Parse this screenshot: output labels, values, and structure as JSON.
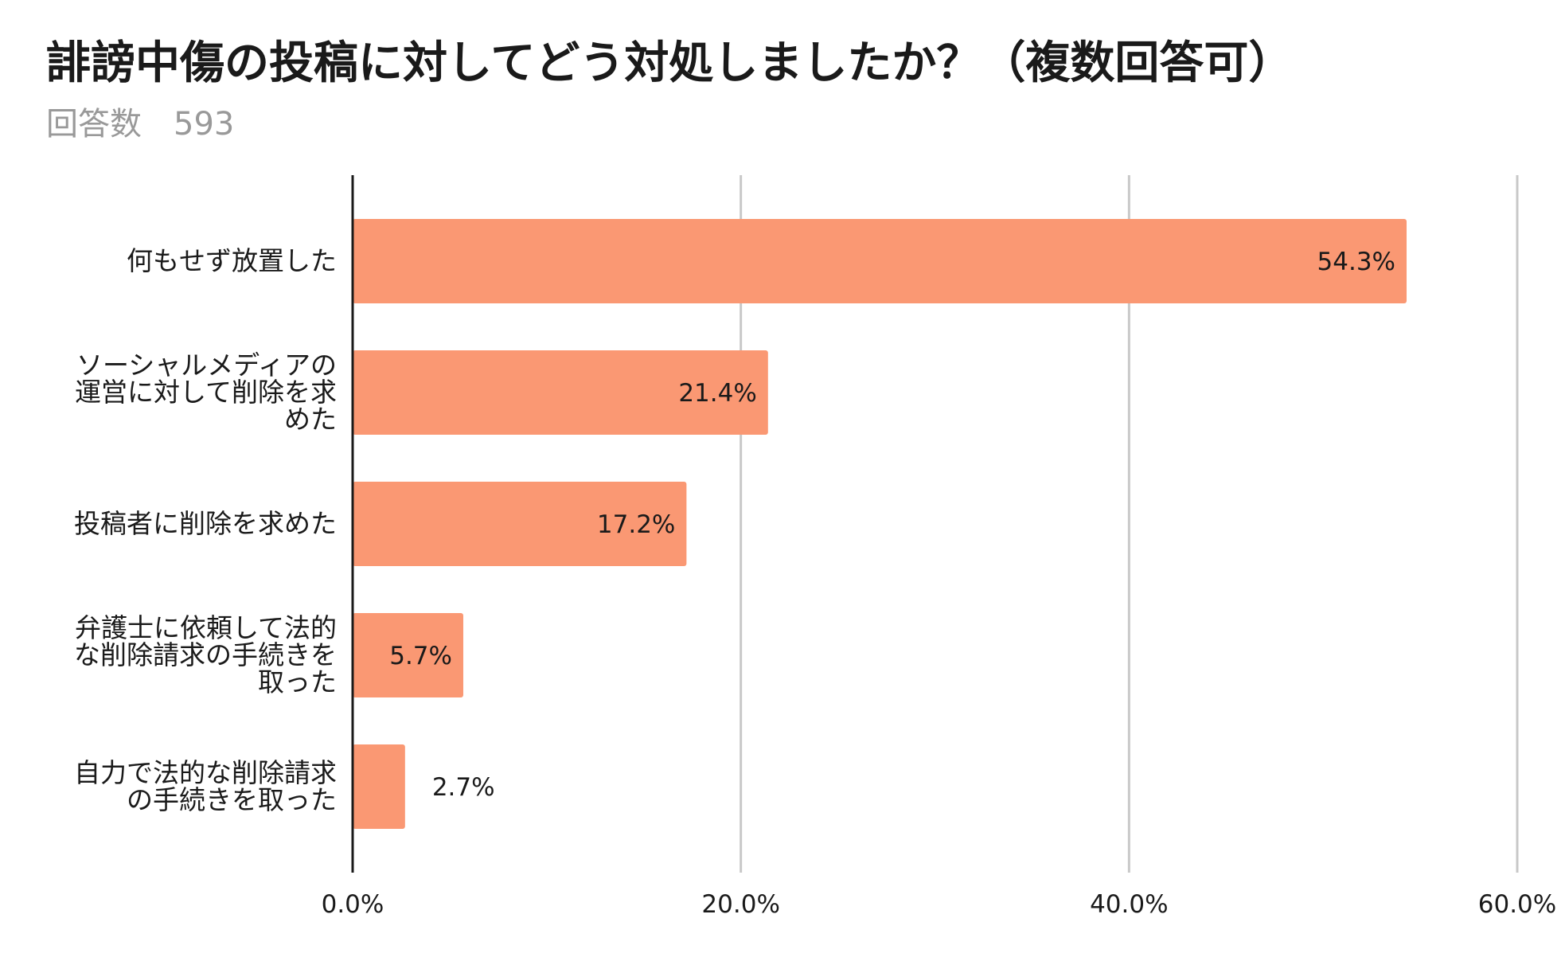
{
  "chart_data": {
    "type": "bar",
    "orientation": "horizontal",
    "title": "誹謗中傷の投稿に対してどう対処しましたか？（複数回答可）",
    "subtitle_label": "回答数",
    "subtitle_value": "593",
    "categories": [
      "何もせず放置した",
      "ソーシャルメディアの運営に対して削除を求めた",
      "投稿者に削除を求めた",
      "弁護士に依頼して法的な削除請求の手続きを取った",
      "自力で法的な削除請求の手続きを取った"
    ],
    "category_lines": [
      [
        "何もせず放置した"
      ],
      [
        "ソーシャルメディアの",
        "運営に対して削除を求",
        "めた"
      ],
      [
        "投稿者に削除を求めた"
      ],
      [
        "弁護士に依頼して法的",
        "な削除請求の手続きを",
        "取った"
      ],
      [
        "自力で法的な削除請求",
        "の手続きを取った"
      ]
    ],
    "values": [
      54.3,
      21.4,
      17.2,
      5.7,
      2.7
    ],
    "value_labels": [
      "54.3%",
      "21.4%",
      "17.2%",
      "5.7%",
      "2.7%"
    ],
    "xlim": [
      0,
      60
    ],
    "xticks": [
      0,
      20,
      40,
      60
    ],
    "xtick_labels": [
      "0.0%",
      "20.0%",
      "40.0%",
      "60.0%"
    ],
    "grid": true,
    "xlabel": "",
    "ylabel": "",
    "colors": {
      "bar": "#FA9873",
      "grid": "#C8C8C8",
      "axis": "#1A1A1A",
      "text": "#1A1A1A"
    }
  }
}
